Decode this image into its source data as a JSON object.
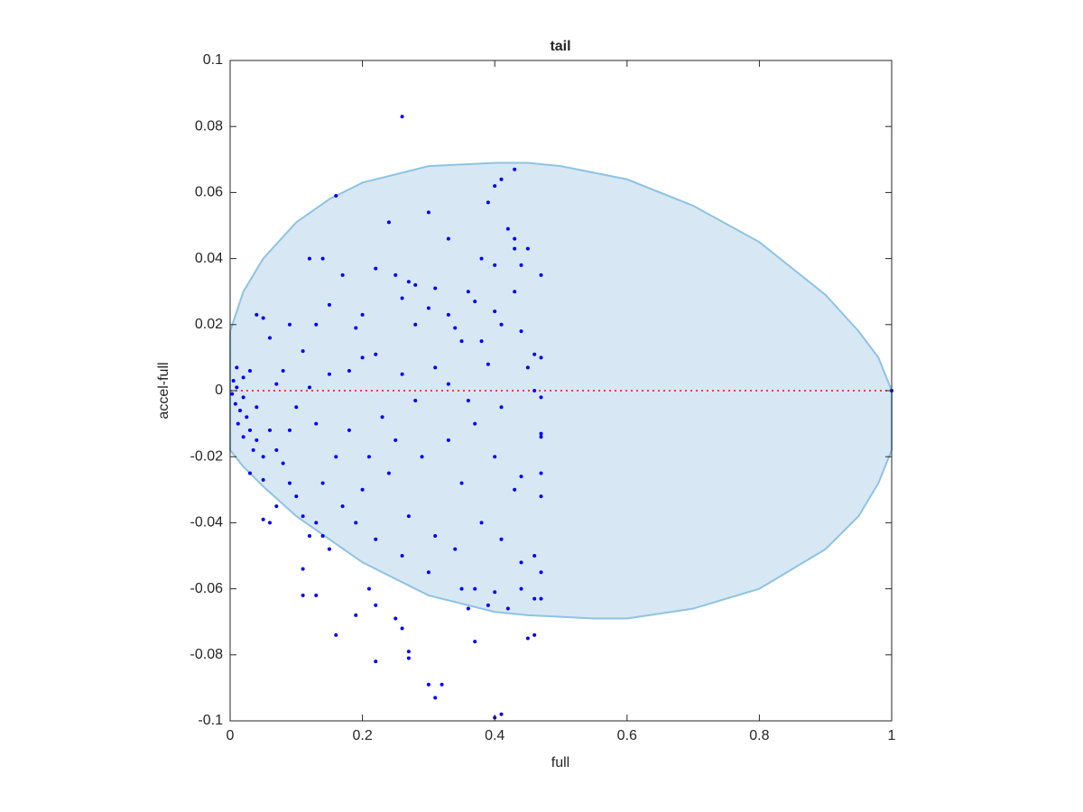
{
  "chart_data": {
    "type": "scatter",
    "title": "tail",
    "xlabel": "full",
    "ylabel": "accel-full",
    "xlim": [
      0,
      1
    ],
    "ylim": [
      -0.1,
      0.1
    ],
    "xticks": [
      0,
      0.2,
      0.4,
      0.6,
      0.8,
      1
    ],
    "yticks": [
      -0.1,
      -0.08,
      -0.06,
      -0.04,
      -0.02,
      0,
      0.02,
      0.04,
      0.06,
      0.08,
      0.1
    ],
    "series": [
      {
        "type": "area",
        "color": "#d7e8f4",
        "edge_color": "#8ec3e2",
        "x": [
          0,
          0.02,
          0.05,
          0.1,
          0.15,
          0.2,
          0.3,
          0.4,
          0.45,
          0.5,
          0.6,
          0.7,
          0.8,
          0.9,
          0.95,
          0.98,
          1,
          1,
          0.98,
          0.95,
          0.9,
          0.8,
          0.7,
          0.6,
          0.55,
          0.45,
          0.4,
          0.3,
          0.2,
          0.1,
          0.05,
          0.02,
          0
        ],
        "y": [
          0.018,
          0.03,
          0.04,
          0.051,
          0.058,
          0.063,
          0.068,
          0.069,
          0.069,
          0.068,
          0.064,
          0.056,
          0.045,
          0.029,
          0.018,
          0.01,
          0,
          -0.018,
          -0.028,
          -0.038,
          -0.048,
          -0.06,
          -0.066,
          -0.069,
          -0.069,
          -0.068,
          -0.067,
          -0.062,
          -0.052,
          -0.038,
          -0.029,
          -0.023,
          -0.018
        ]
      },
      {
        "type": "line",
        "color": "#ff0000",
        "line_style": "dotted",
        "x": [
          0,
          1
        ],
        "y": [
          0,
          0
        ]
      },
      {
        "type": "scatter",
        "color": "#0000ff",
        "x": [
          0.26,
          0.16,
          0.43,
          0.41,
          0.4,
          0.39,
          0.24,
          0.3,
          0.33,
          0.42,
          0.43,
          0.45,
          0.43,
          0.12,
          0.14,
          0.17,
          0.38,
          0.4,
          0.44,
          0.22,
          0.25,
          0.47,
          0.27,
          0.28,
          0.31,
          0.36,
          0.43,
          0.26,
          0.15,
          0.3,
          0.33,
          0.37,
          0.4,
          0.05,
          0.04,
          0.2,
          0.13,
          0.09,
          0.19,
          0.28,
          0.34,
          0.38,
          0.41,
          0.44,
          0.35,
          0.06,
          0.11,
          0.2,
          0.22,
          0.46,
          0.47,
          0.45,
          0.39,
          0.31,
          0.26,
          0.18,
          0.15,
          0.08,
          0.03,
          0.01,
          0.02,
          0.005,
          0.01,
          0.003,
          0.02,
          0.008,
          0.015,
          0.025,
          0.012,
          0.03,
          0.02,
          0.04,
          0.035,
          0.05,
          0.07,
          0.06,
          0.08,
          0.05,
          0.09,
          0.1,
          0.07,
          0.05,
          0.06,
          0.11,
          0.13,
          0.12,
          0.14,
          0.15,
          0.11,
          0.11,
          0.13,
          0.16,
          0.19,
          0.21,
          0.22,
          0.25,
          0.26,
          0.27,
          0.27,
          0.22,
          0.3,
          0.32,
          0.31,
          0.4,
          0.41,
          0.37,
          0.36,
          0.37,
          0.35,
          0.39,
          0.4,
          0.42,
          0.45,
          0.46,
          0.44,
          0.46,
          0.47,
          0.47,
          0.44,
          0.46,
          0.43,
          0.44,
          0.47,
          0.47,
          0.47,
          0.47,
          0.47,
          0.46,
          0.41,
          0.37,
          0.33,
          0.29,
          0.24,
          0.2,
          0.17,
          0.27,
          0.31,
          0.34,
          0.38,
          0.41,
          0.3,
          0.26,
          0.22,
          0.19,
          0.16,
          0.13,
          0.1,
          0.18,
          0.23,
          0.28,
          0.33,
          0.36,
          0.4,
          0.35,
          0.25,
          0.21,
          0.14,
          0.12,
          0.07,
          0.04,
          0.03,
          0.09,
          1.0
        ],
        "y": [
          0.083,
          0.059,
          0.067,
          0.064,
          0.062,
          0.057,
          0.051,
          0.054,
          0.046,
          0.049,
          0.046,
          0.043,
          0.043,
          0.04,
          0.04,
          0.035,
          0.04,
          0.038,
          0.038,
          0.037,
          0.035,
          0.035,
          0.033,
          0.032,
          0.031,
          0.03,
          0.03,
          0.028,
          0.026,
          0.025,
          0.023,
          0.027,
          0.024,
          0.022,
          0.023,
          0.023,
          0.02,
          0.02,
          0.019,
          0.02,
          0.019,
          0.015,
          0.02,
          0.018,
          0.015,
          0.016,
          0.012,
          0.01,
          0.011,
          0.011,
          0.01,
          0.007,
          0.008,
          0.007,
          0.005,
          0.006,
          0.005,
          0.006,
          0.006,
          0.007,
          0.004,
          0.003,
          0.001,
          -0.001,
          -0.002,
          -0.004,
          -0.006,
          -0.008,
          -0.01,
          -0.012,
          -0.014,
          -0.015,
          -0.018,
          -0.02,
          -0.018,
          -0.012,
          -0.022,
          -0.027,
          -0.028,
          -0.032,
          -0.035,
          -0.039,
          -0.04,
          -0.038,
          -0.04,
          -0.044,
          -0.044,
          -0.048,
          -0.054,
          -0.062,
          -0.062,
          -0.074,
          -0.068,
          -0.06,
          -0.065,
          -0.069,
          -0.072,
          -0.079,
          -0.081,
          -0.082,
          -0.089,
          -0.089,
          -0.093,
          -0.099,
          -0.098,
          -0.076,
          -0.066,
          -0.06,
          -0.06,
          -0.065,
          -0.061,
          -0.066,
          -0.075,
          -0.074,
          -0.06,
          -0.063,
          -0.055,
          -0.063,
          -0.052,
          -0.05,
          -0.03,
          -0.026,
          -0.032,
          -0.025,
          -0.014,
          -0.013,
          -0.002,
          0.0,
          -0.005,
          -0.01,
          -0.015,
          -0.02,
          -0.025,
          -0.03,
          -0.035,
          -0.038,
          -0.044,
          -0.048,
          -0.04,
          -0.045,
          -0.055,
          -0.05,
          -0.045,
          -0.04,
          -0.02,
          -0.01,
          -0.005,
          -0.012,
          -0.008,
          -0.003,
          0.002,
          -0.003,
          -0.02,
          -0.028,
          -0.015,
          -0.02,
          -0.028,
          0.001,
          0.002,
          -0.005,
          -0.025,
          -0.012,
          0.0
        ]
      }
    ]
  }
}
